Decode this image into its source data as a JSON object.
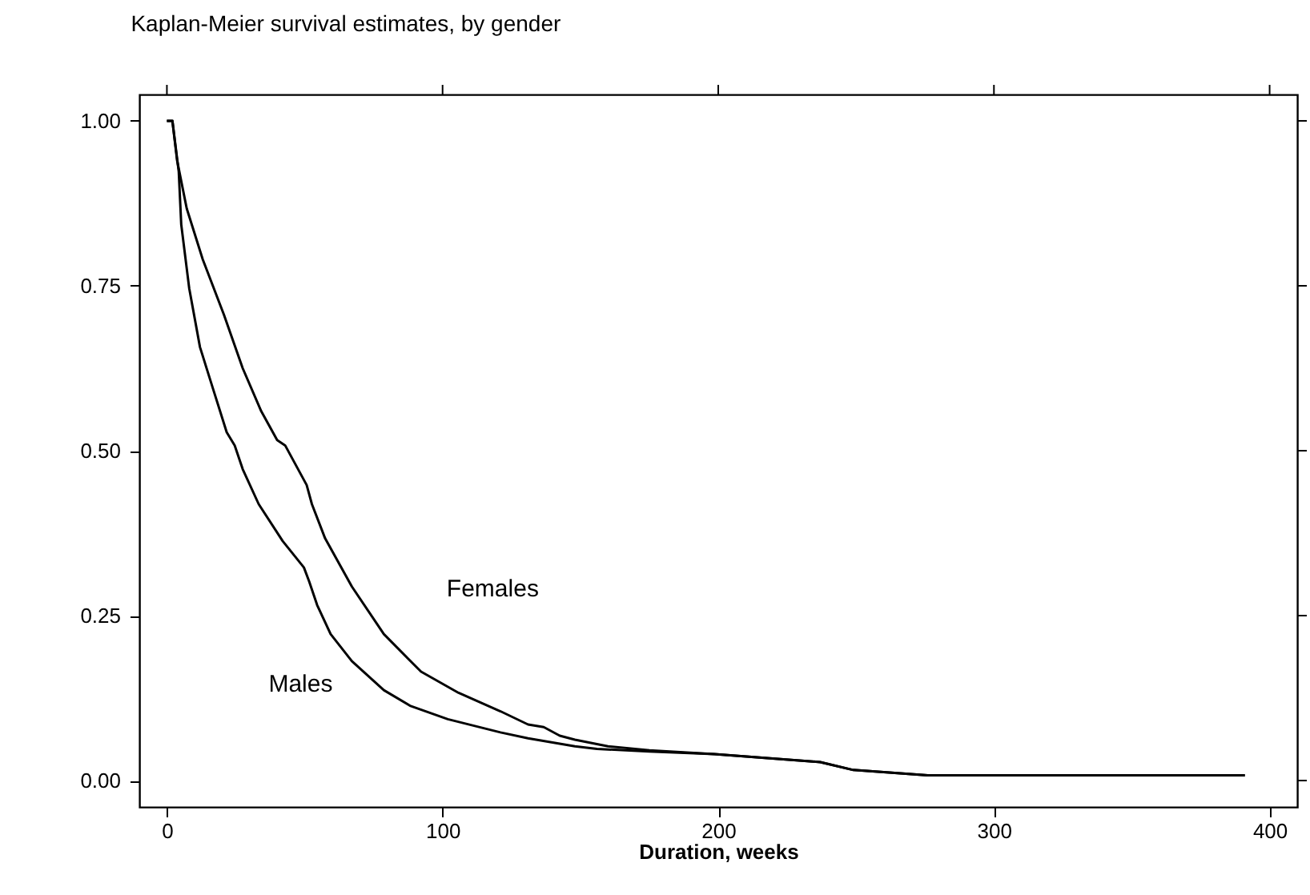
{
  "chart_data": {
    "type": "line",
    "title": "Kaplan-Meier survival estimates, by gender",
    "xlabel": "Duration, weeks",
    "xlim": [
      -10,
      410
    ],
    "ylim": [
      -0.04,
      1.04
    ],
    "xticks": [
      0,
      100,
      200,
      300,
      400
    ],
    "yticks": [
      {
        "value": 0,
        "label": "0.00"
      },
      {
        "value": 0.25,
        "label": "0.25"
      },
      {
        "value": 0.5,
        "label": "0.50"
      },
      {
        "value": 0.75,
        "label": "0.75"
      },
      {
        "value": 1,
        "label": "1.00"
      }
    ],
    "grid": false,
    "legend": false,
    "line_style": "solid",
    "marker": "none",
    "series": [
      {
        "name": "Females",
        "color": "#000000",
        "x": [
          0,
          2,
          3.7,
          7.2,
          13,
          20.7,
          27.5,
          34.2,
          40,
          42.9,
          50.7,
          52.6,
          57.4,
          67.1,
          78.7,
          92.2,
          105.8,
          121,
          131,
          136.7,
          142.5,
          148,
          160,
          175,
          198.6,
          237,
          249,
          276,
          391
        ],
        "values": [
          1,
          1,
          0.94,
          0.867,
          0.79,
          0.706,
          0.625,
          0.56,
          0.516,
          0.508,
          0.448,
          0.419,
          0.367,
          0.294,
          0.222,
          0.165,
          0.133,
          0.105,
          0.085,
          0.081,
          0.068,
          0.062,
          0.052,
          0.046,
          0.04,
          0.028,
          0.016,
          0.008,
          0.008
        ]
      },
      {
        "name": "Males",
        "color": "#000000",
        "x": [
          0,
          2,
          4.3,
          5.2,
          8.1,
          12,
          16.8,
          21.7,
          24.6,
          27.5,
          33.3,
          42,
          49.7,
          51.6,
          54.5,
          59.4,
          67.1,
          78.7,
          88.4,
          101.9,
          121,
          131,
          148,
          156,
          175,
          198.6,
          237,
          249,
          276,
          391
        ],
        "values": [
          1,
          1,
          0.923,
          0.843,
          0.746,
          0.657,
          0.593,
          0.528,
          0.508,
          0.472,
          0.419,
          0.363,
          0.323,
          0.302,
          0.266,
          0.222,
          0.181,
          0.137,
          0.113,
          0.093,
          0.073,
          0.064,
          0.052,
          0.048,
          0.044,
          0.04,
          0.028,
          0.016,
          0.008,
          0.008
        ]
      }
    ]
  }
}
